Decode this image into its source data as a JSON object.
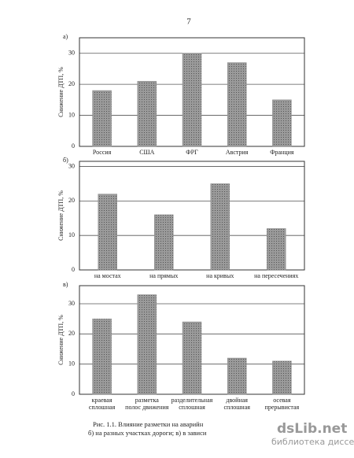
{
  "page_number": "7",
  "caption": [
    "Рис. 1.1. Влияние разметки на аварийн",
    "б) на разных участках дороги; в) в зависи"
  ],
  "watermark": {
    "site": "dsLib.net",
    "tagline": "библиотека диссертаций"
  },
  "chart_data": [
    {
      "type": "bar",
      "panel": "а)",
      "y_label": "Снижение ДТП, %",
      "categories": [
        [
          "Россия"
        ],
        [
          "США"
        ],
        [
          "ФРГ"
        ],
        [
          "Австрия"
        ],
        [
          "Франция"
        ]
      ],
      "values": [
        18,
        21,
        30,
        27,
        15
      ],
      "color": "#8c8c8c",
      "ylim": [
        0,
        35
      ],
      "yticks": [
        0,
        10,
        20,
        30
      ],
      "grid": true
    },
    {
      "type": "bar",
      "panel": "б)",
      "y_label": "Снижение ДТП, %",
      "categories": [
        [
          "на мостах"
        ],
        [
          "на прямых"
        ],
        [
          "на кривых"
        ],
        [
          "на пересечениях"
        ]
      ],
      "values": [
        22,
        16,
        25,
        12
      ],
      "color": "#8c8c8c",
      "ylim": [
        0,
        31.5
      ],
      "yticks": [
        0,
        10,
        20,
        30
      ],
      "grid": true
    },
    {
      "type": "bar",
      "panel": "в)",
      "y_label": "Снижение ДТП, %",
      "categories": [
        [
          "краевая",
          "сплошная"
        ],
        [
          "разметка",
          "полос движения"
        ],
        [
          "разделительная",
          "сплошная"
        ],
        [
          "двойная",
          "сплошная"
        ],
        [
          "осевая",
          "прерывистая"
        ]
      ],
      "values": [
        25,
        33,
        24,
        12,
        11
      ],
      "color": "#8c8c8c",
      "ylim": [
        0,
        36
      ],
      "yticks": [
        0,
        10,
        20,
        30
      ],
      "grid": true
    }
  ]
}
